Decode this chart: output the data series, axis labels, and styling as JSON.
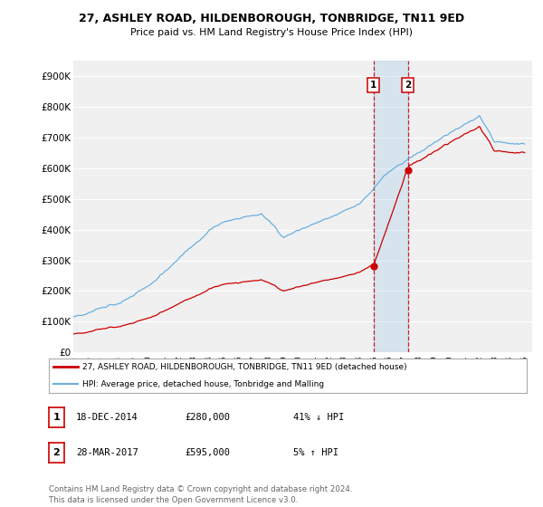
{
  "title": "27, ASHLEY ROAD, HILDENBOROUGH, TONBRIDGE, TN11 9ED",
  "subtitle": "Price paid vs. HM Land Registry's House Price Index (HPI)",
  "ylabel_ticks": [
    "£0",
    "£100K",
    "£200K",
    "£300K",
    "£400K",
    "£500K",
    "£600K",
    "£700K",
    "£800K",
    "£900K"
  ],
  "ytick_values": [
    0,
    100000,
    200000,
    300000,
    400000,
    500000,
    600000,
    700000,
    800000,
    900000
  ],
  "ylim": [
    0,
    950000
  ],
  "xlim_start": 1995,
  "xlim_end": 2025.5,
  "background_color": "#ffffff",
  "plot_bg_color": "#f0f0f0",
  "grid_color": "#ffffff",
  "hpi_color": "#6ab0e0",
  "house_color": "#cc0000",
  "transaction1_date": 2014.96,
  "transaction1_price": 280000,
  "transaction2_date": 2017.24,
  "transaction2_price": 595000,
  "legend_house": "27, ASHLEY ROAD, HILDENBOROUGH, TONBRIDGE, TN11 9ED (detached house)",
  "legend_hpi": "HPI: Average price, detached house, Tonbridge and Malling",
  "annotation1_label": "1",
  "annotation1_date": "18-DEC-2014",
  "annotation1_price": "£280,000",
  "annotation1_hpi": "41% ↓ HPI",
  "annotation2_label": "2",
  "annotation2_date": "28-MAR-2017",
  "annotation2_price": "£595,000",
  "annotation2_hpi": "5% ↑ HPI",
  "footnote": "Contains HM Land Registry data © Crown copyright and database right 2024.\nThis data is licensed under the Open Government Licence v3.0."
}
